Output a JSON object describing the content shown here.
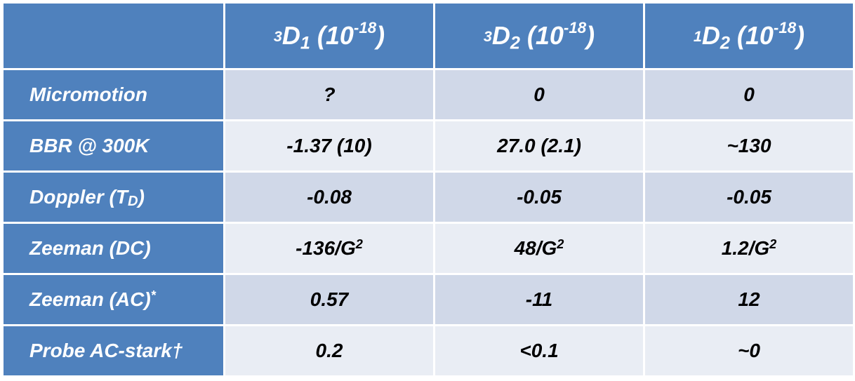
{
  "header": {
    "col1": {
      "pre": "3",
      "base": "D",
      "sub": "1",
      "unit_open": " (10",
      "exp": "-18",
      "unit_close": ")"
    },
    "col2": {
      "pre": "3",
      "base": "D",
      "sub": "2",
      "unit_open": " (10",
      "exp": "-18",
      "unit_close": ")"
    },
    "col3": {
      "pre": "1",
      "base": "D",
      "sub": "2",
      "unit_open": " (10",
      "exp": "-18",
      "unit_close": ")"
    }
  },
  "rows": [
    {
      "label": "Micromotion",
      "v1": "?",
      "v2": "0",
      "v3": "0"
    },
    {
      "label": "BBR @ 300K",
      "v1": "-1.37 (10)",
      "v2": "27.0 (2.1)",
      "v3": "~130"
    },
    {
      "label_main": "Doppler (T",
      "label_sub": "D",
      "label_end": ")",
      "v1": "-0.08",
      "v2": "-0.05",
      "v3": "-0.05"
    },
    {
      "label": "Zeeman (DC)",
      "v1_main": "-136/G",
      "v1_sup": "2",
      "v2_main": "48/G",
      "v2_sup": "2",
      "v3_main": "1.2/G",
      "v3_sup": "2"
    },
    {
      "label_main": "Zeeman (AC)",
      "label_sup": "*",
      "v1": "0.57",
      "v2": "-11",
      "v3": "12"
    },
    {
      "label": "Probe AC-stark†",
      "v1": "0.2",
      "v2": "<0.1",
      "v3": "~0"
    }
  ]
}
